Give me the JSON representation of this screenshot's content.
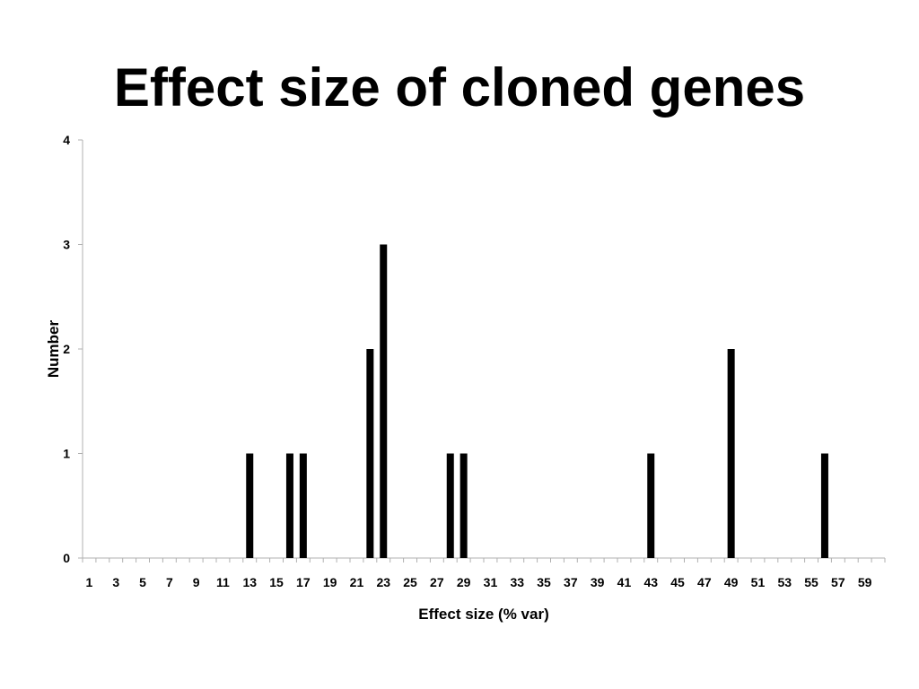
{
  "slide": {
    "title": "Effect size of cloned genes"
  },
  "chart_data": {
    "type": "bar",
    "title": "",
    "xlabel": "Effect size (% var)",
    "ylabel": "Number",
    "ylim": [
      0,
      4
    ],
    "yticks": [
      0,
      1,
      2,
      3,
      4
    ],
    "x_range": [
      1,
      60
    ],
    "x_tick_labels": [
      1,
      3,
      5,
      7,
      9,
      11,
      13,
      15,
      17,
      19,
      21,
      23,
      25,
      27,
      29,
      31,
      33,
      35,
      37,
      39,
      41,
      43,
      45,
      47,
      49,
      51,
      53,
      55,
      57,
      59
    ],
    "grid": false,
    "legend": false,
    "bar_color": "#000000",
    "axis_color": "#b0b0b0",
    "bars": [
      {
        "x": 13,
        "value": 1
      },
      {
        "x": 16,
        "value": 1
      },
      {
        "x": 17,
        "value": 1
      },
      {
        "x": 22,
        "value": 2
      },
      {
        "x": 23,
        "value": 3
      },
      {
        "x": 28,
        "value": 1
      },
      {
        "x": 29,
        "value": 1
      },
      {
        "x": 43,
        "value": 1
      },
      {
        "x": 49,
        "value": 2
      },
      {
        "x": 56,
        "value": 1
      }
    ]
  }
}
